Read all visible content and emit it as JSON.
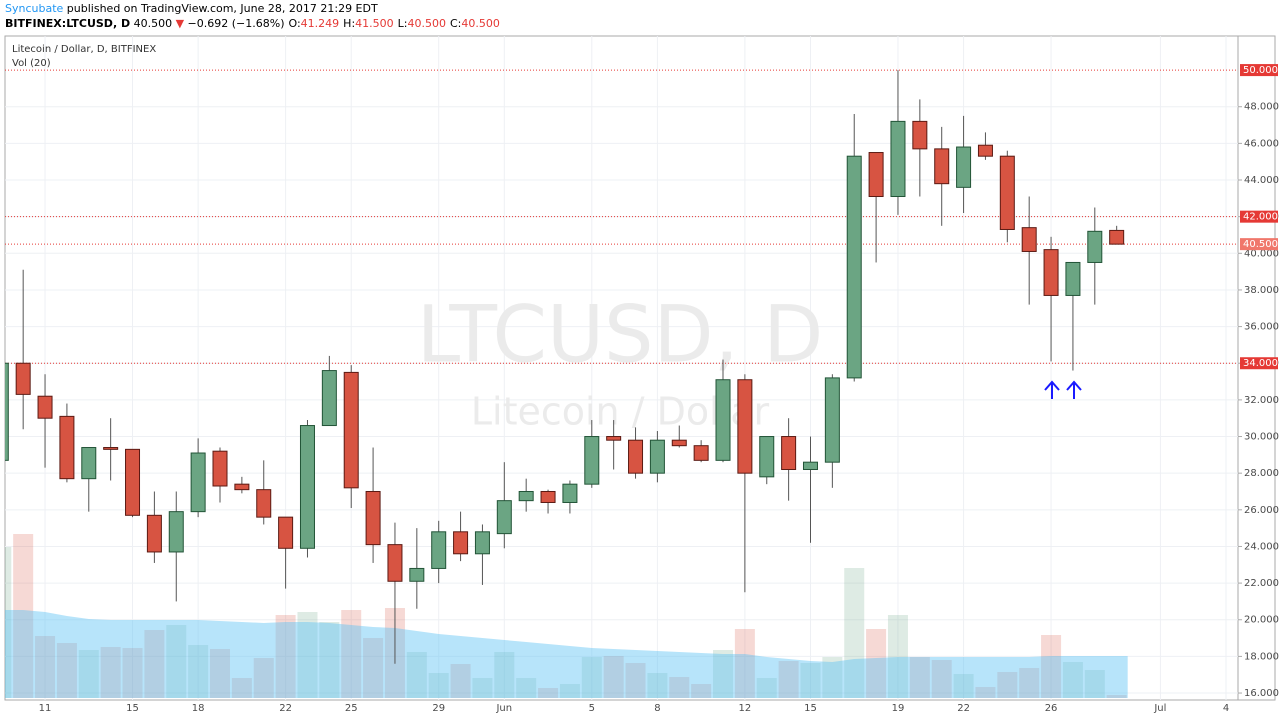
{
  "header": {
    "author": "Syncubate",
    "published": "published on TradingView.com, June 28, 2017 21:29 EDT",
    "symbol": "BITFINEX:LTCUSD, D",
    "last": "40.500",
    "direction": "▼",
    "change": "−0.692 (−1.68%)",
    "ohlc": [
      {
        "label": "O:",
        "value": "41.249"
      },
      {
        "label": "H:",
        "value": "41.500"
      },
      {
        "label": "L:",
        "value": "40.500"
      },
      {
        "label": "C:",
        "value": "40.500"
      }
    ]
  },
  "chart_data": {
    "type": "candlestick",
    "title": "Litecoin / Dollar, D, BITFINEX",
    "watermark": "LTCUSD, D",
    "watermark_subtitle": "Litecoin / Dollar",
    "categories": [
      null,
      null,
      "11",
      null,
      null,
      null,
      "15",
      null,
      null,
      "18",
      null,
      null,
      null,
      "22",
      null,
      null,
      "25",
      null,
      null,
      null,
      "29",
      null,
      null,
      "Jun",
      null,
      null,
      null,
      "5",
      null,
      null,
      "8",
      null,
      null,
      null,
      "12",
      null,
      null,
      "15",
      null,
      null,
      null,
      "19",
      null,
      null,
      "22",
      null,
      null,
      null,
      "26",
      null,
      null,
      null,
      null,
      "Jul",
      null,
      null,
      "4"
    ],
    "open": [
      28.7,
      34.0,
      32.2,
      31.1,
      27.7,
      29.4,
      29.3,
      25.7,
      23.7,
      25.9,
      29.2,
      27.4,
      27.1,
      25.6,
      23.9,
      30.6,
      33.5,
      27.0,
      24.1,
      22.1,
      22.8,
      24.8,
      23.6,
      24.7,
      26.5,
      27.0,
      26.4,
      27.4,
      30.0,
      29.8,
      28.0,
      29.8,
      29.5,
      28.7,
      33.1,
      27.8,
      30.0,
      28.2,
      28.6,
      33.2,
      45.5,
      43.1,
      47.2,
      45.7,
      43.6,
      45.9,
      45.3,
      41.4,
      40.2,
      37.7,
      39.5,
      41.249,
      null,
      null,
      null,
      null,
      null
    ],
    "high": [
      34.0,
      39.1,
      33.4,
      31.8,
      29.4,
      31.0,
      29.3,
      27.0,
      27.0,
      29.9,
      29.4,
      27.8,
      28.7,
      25.6,
      30.9,
      34.4,
      33.9,
      29.4,
      25.3,
      25.0,
      25.4,
      25.9,
      25.2,
      28.6,
      27.7,
      27.1,
      27.6,
      30.9,
      30.9,
      30.5,
      30.3,
      30.6,
      29.8,
      34.2,
      33.4,
      30.0,
      31.0,
      30.0,
      33.4,
      47.6,
      45.5,
      50.0,
      48.4,
      46.9,
      47.5,
      46.6,
      45.6,
      43.1,
      40.9,
      39.5,
      42.5,
      41.5,
      null,
      null,
      null,
      null,
      null
    ],
    "low": [
      28.7,
      30.4,
      28.3,
      27.5,
      25.9,
      27.6,
      25.6,
      23.1,
      21.0,
      25.6,
      26.4,
      26.9,
      25.2,
      21.7,
      23.4,
      30.6,
      26.1,
      23.1,
      17.6,
      20.6,
      22.0,
      23.2,
      21.9,
      23.9,
      25.9,
      25.8,
      25.8,
      27.2,
      28.2,
      27.7,
      27.5,
      29.4,
      28.6,
      28.6,
      21.5,
      27.4,
      26.5,
      24.2,
      27.2,
      33.0,
      39.5,
      42.1,
      43.1,
      41.5,
      42.2,
      45.1,
      40.6,
      37.2,
      34.1,
      33.6,
      37.2,
      40.5,
      null,
      null,
      null,
      null,
      null
    ],
    "close": [
      34.0,
      32.3,
      31.0,
      27.7,
      29.4,
      29.3,
      25.7,
      23.7,
      25.9,
      29.1,
      27.3,
      27.1,
      25.6,
      23.9,
      30.6,
      33.6,
      27.2,
      24.1,
      22.1,
      22.8,
      24.8,
      23.6,
      24.8,
      26.5,
      27.0,
      26.4,
      27.4,
      30.0,
      29.8,
      28.0,
      29.8,
      29.5,
      28.7,
      33.1,
      28.0,
      30.0,
      28.2,
      28.6,
      33.2,
      45.3,
      43.1,
      47.2,
      45.7,
      43.8,
      45.8,
      45.3,
      41.3,
      40.1,
      37.7,
      39.5,
      41.2,
      40.5,
      null,
      null,
      null,
      null,
      null
    ],
    "up_color": "#6ba583",
    "down_color": "#d75442",
    "volume": {
      "label": "Vol (20)",
      "ma_color": "#5fc3f5",
      "values": [
        151,
        164,
        62,
        55,
        48,
        51,
        50,
        68,
        73,
        53,
        49,
        20,
        40,
        83,
        86,
        76,
        88,
        60,
        90,
        46,
        25,
        34,
        20,
        46,
        20,
        10,
        14,
        41,
        42,
        35,
        25,
        21,
        14,
        48,
        69,
        20,
        37,
        35,
        41,
        130,
        69,
        83,
        41,
        38,
        24,
        11,
        26,
        30,
        63,
        36,
        28,
        3,
        null,
        null,
        null,
        null,
        null
      ],
      "ma": [
        88,
        88,
        86,
        82,
        79,
        78,
        78,
        78,
        78,
        78,
        77,
        76,
        75,
        76,
        76,
        75,
        73,
        71,
        70,
        67,
        64,
        62,
        60,
        58,
        56,
        54,
        52,
        50,
        49,
        48,
        47,
        46,
        45,
        44,
        44,
        41,
        39,
        37,
        36,
        39,
        40,
        41,
        41,
        41,
        41,
        41,
        41,
        41,
        42,
        42,
        42,
        42,
        null,
        null,
        null,
        null,
        null
      ]
    },
    "ylim": [
      15.62,
      51.86
    ],
    "yticks": [
      {
        "value": 16,
        "label": "16.000"
      },
      {
        "value": 18,
        "label": "18.000"
      },
      {
        "value": 20,
        "label": "20.000"
      },
      {
        "value": 22,
        "label": "22.000"
      },
      {
        "value": 24,
        "label": "24.000"
      },
      {
        "value": 26,
        "label": "26.000"
      },
      {
        "value": 28,
        "label": "28.000"
      },
      {
        "value": 30,
        "label": "30.000"
      },
      {
        "value": 32,
        "label": "32.000"
      },
      {
        "value": 34,
        "label": "34.000"
      },
      {
        "value": 36,
        "label": "36.000"
      },
      {
        "value": 38,
        "label": "38.000"
      },
      {
        "value": 40,
        "label": "40.000"
      },
      {
        "value": 42,
        "label": "42.000"
      },
      {
        "value": 44,
        "label": "44.000"
      },
      {
        "value": 46,
        "label": "46.000"
      },
      {
        "value": 48,
        "label": "48.000"
      }
    ],
    "hlines": [
      {
        "value": 50,
        "label": "50.000"
      },
      {
        "value": 42,
        "label": "42.000"
      },
      {
        "value": 34,
        "label": "34.000"
      }
    ],
    "last_price": {
      "value": 40.5,
      "label": "40.500"
    },
    "hline_color": "#e53935",
    "grid": true
  }
}
